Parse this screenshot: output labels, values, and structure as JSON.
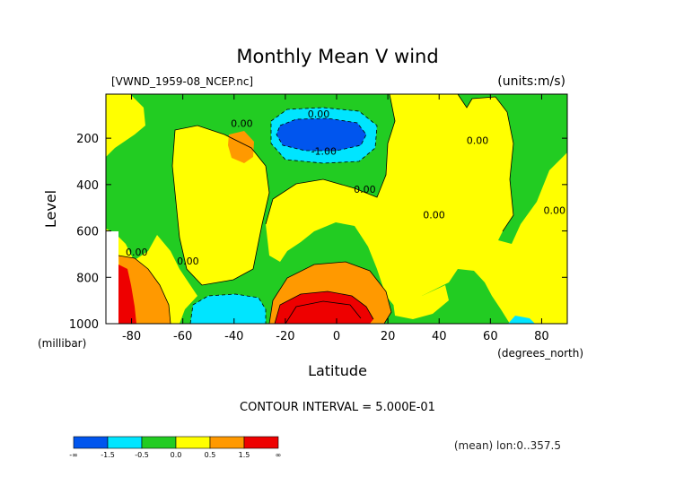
{
  "chart_data": {
    "type": "contour",
    "title": "Monthly Mean V wind",
    "dataset_label": "[VWND_1959-08_NCEP.nc]",
    "units_label": "(units:m/s)",
    "xlabel": "Latitude",
    "x_unit_label": "(degrees_north)",
    "ylabel": "Level",
    "y_unit_label": "(millibar)",
    "xlim": [
      -90,
      90
    ],
    "ylim": [
      1000,
      10
    ],
    "x_ticks": [
      "-80",
      "-60",
      "-40",
      "-20",
      "0",
      "20",
      "40",
      "60",
      "80"
    ],
    "x_tick_values": [
      -80,
      -60,
      -40,
      -20,
      0,
      20,
      40,
      60,
      80
    ],
    "y_ticks": [
      "200",
      "400",
      "600",
      "800",
      "1000"
    ],
    "y_tick_values": [
      200,
      400,
      600,
      800,
      1000
    ],
    "contour_interval_text": "CONTOUR INTERVAL = 5.000E-01",
    "footer_text": "(mean) lon:0..357.5",
    "contour_labels": [
      {
        "text": "0.00",
        "lat": -7,
        "level": 95
      },
      {
        "text": "0.00",
        "lat": -37,
        "level": 135
      },
      {
        "text": "-1.00",
        "lat": -5,
        "level": 255
      },
      {
        "text": "0.00",
        "lat": 11,
        "level": 420
      },
      {
        "text": "0.00",
        "lat": 55,
        "level": 210
      },
      {
        "text": "0.00",
        "lat": 38,
        "level": 530
      },
      {
        "text": "0.00",
        "lat": 85,
        "level": 510
      },
      {
        "text": "0.00",
        "lat": -78,
        "level": 690
      },
      {
        "text": "0.00",
        "lat": -58,
        "level": 730
      }
    ],
    "colorbar": {
      "colors": [
        "#0055ee",
        "#00e5ff",
        "#22cc22",
        "#ffff00",
        "#ff9900",
        "#ee0000"
      ],
      "labels": [
        "-∞",
        "-1.5",
        "-0.5",
        "0.0",
        "0.5",
        "1.5",
        "∞"
      ]
    }
  },
  "colors": {
    "strong_negative": "#0055ee",
    "negative": "#00e5ff",
    "near_zero_negative": "#22cc22",
    "near_zero_positive": "#ffff00",
    "positive": "#ff9900",
    "strong_positive": "#ee0000"
  }
}
